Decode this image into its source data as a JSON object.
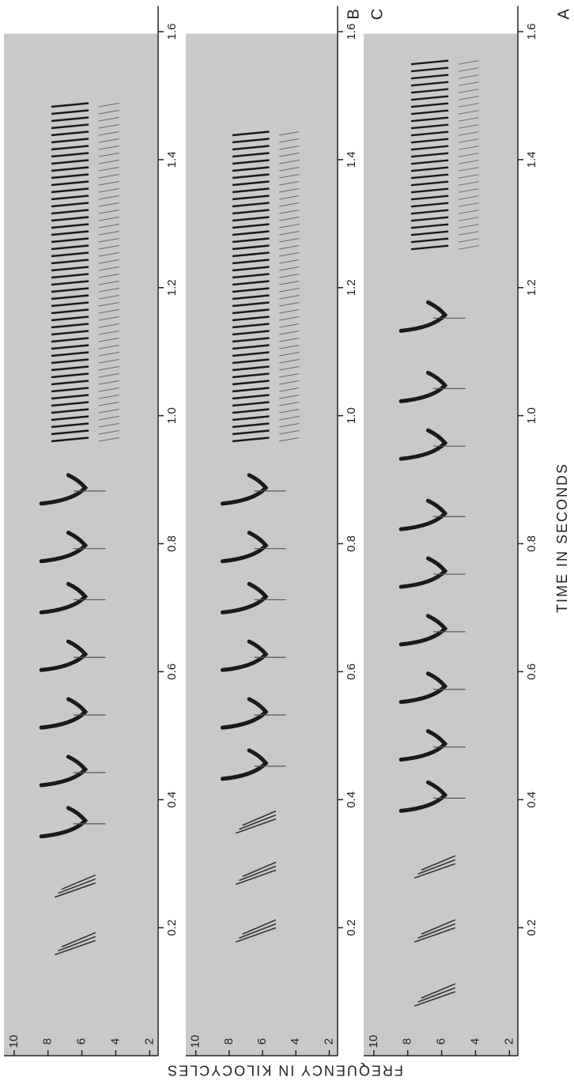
{
  "figure": {
    "xlabel": "TIME IN SECONDS",
    "ylabel": "FREQUENCY IN KILOCYCLES"
  },
  "chart_data": [
    {
      "type": "spectrogram",
      "label": "A",
      "xlim": [
        0,
        1.64
      ],
      "ylim": [
        1.5,
        10.6
      ],
      "xticks": [
        0.2,
        0.4,
        0.6,
        0.8,
        {
          "value": 1,
          "label": "1.0"
        },
        1.2,
        1.4,
        1.6
      ],
      "yticks": [
        10,
        8,
        6,
        4,
        2
      ],
      "clicks": [
        0.17,
        0.26
      ],
      "notes": [
        0.35,
        0.43,
        0.52,
        0.61,
        0.7,
        0.78,
        0.87
      ],
      "trill": [
        0.96,
        1.49
      ]
    },
    {
      "type": "spectrogram",
      "label": "B",
      "xlim": [
        0,
        1.64
      ],
      "ylim": [
        1.5,
        10.6
      ],
      "xticks": [
        0.2,
        0.4,
        0.6,
        0.8,
        {
          "value": 1,
          "label": "1.0"
        },
        1.2,
        1.4,
        1.6
      ],
      "yticks": [
        10,
        8,
        6,
        4,
        2
      ],
      "clicks": [
        0.19,
        0.28,
        0.36
      ],
      "notes": [
        0.44,
        0.52,
        0.61,
        0.7,
        0.78,
        0.87
      ],
      "trill": [
        0.96,
        1.44
      ]
    },
    {
      "type": "spectrogram",
      "label": "C",
      "xlim": [
        0,
        1.64
      ],
      "ylim": [
        1.5,
        10.6
      ],
      "xticks": [
        0.2,
        0.4,
        0.6,
        0.8,
        {
          "value": 1,
          "label": "1.0"
        },
        1.2,
        1.4,
        1.6
      ],
      "yticks": [
        10,
        8,
        6,
        4,
        2
      ],
      "clicks": [
        0.09,
        0.19,
        0.29
      ],
      "notes": [
        0.39,
        0.47,
        0.56,
        0.65,
        0.74,
        0.83,
        0.94,
        1.03,
        1.14
      ],
      "trill": [
        1.26,
        1.55
      ]
    }
  ]
}
